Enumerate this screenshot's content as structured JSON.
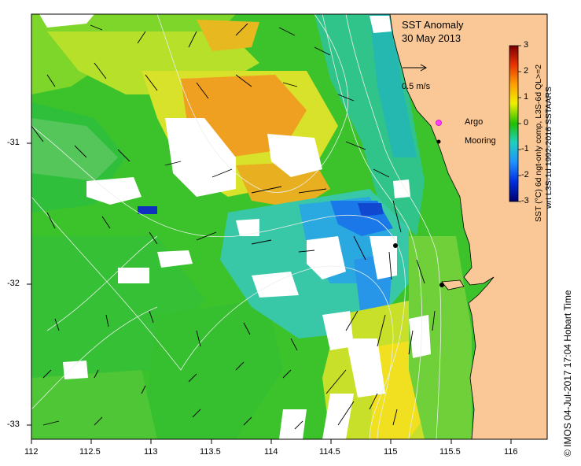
{
  "title": {
    "line1": "SST Anomaly",
    "line2": "30 May 2013"
  },
  "scale_arrow_label": "0.5 m/s",
  "legend": {
    "argo": "Argo",
    "mooring": "Mooring"
  },
  "colorbar": {
    "label_line1": "SST (°C) 6d ngt-only comp, L3S-6d QL>=2",
    "label_line2": "wrt L3S-1d 1992-2016 SSTAARS",
    "ticks": [
      "3",
      "2",
      "1",
      "0",
      "-1",
      "-2",
      "-3"
    ]
  },
  "axes": {
    "x_ticks": [
      "112",
      "112.5",
      "113",
      "113.5",
      "114",
      "114.5",
      "115",
      "115.5",
      "116"
    ],
    "y_ticks": [
      "-31",
      "-32",
      "-33"
    ]
  },
  "credit": "© IMOS 04-Jul-2017 17:04 Hobart Time",
  "colors": {
    "land": "#f9c896",
    "cloud": "#ffffff",
    "frame": "#000000",
    "contour": "#e8f0e8"
  }
}
